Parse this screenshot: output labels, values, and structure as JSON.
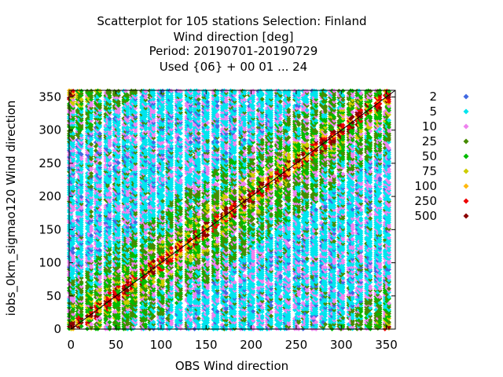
{
  "chart_data": {
    "type": "scatter",
    "title": [
      "Scatterplot for  105 stations Selection: Finland",
      "Wind direction [deg]",
      "Period: 20190701-20190729",
      "Used {06} + 00 01 ... 24"
    ],
    "xlabel": "OBS Wind direction",
    "ylabel": "iobs_0km_sigmao120 Wind direction",
    "xlim": [
      -2,
      360
    ],
    "ylim": [
      0,
      360
    ],
    "xticks": [
      0,
      50,
      100,
      150,
      200,
      250,
      300,
      350
    ],
    "yticks": [
      0,
      50,
      100,
      150,
      200,
      250,
      300,
      350
    ],
    "grid": false,
    "legend_position": "right",
    "diagonal_line": true,
    "series": [
      {
        "name": "2",
        "color": "#4169e1"
      },
      {
        "name": "5",
        "color": "#00e5ee"
      },
      {
        "name": "10",
        "color": "#ee82ee"
      },
      {
        "name": "25",
        "color": "#458b00"
      },
      {
        "name": "50",
        "color": "#00bb00"
      },
      {
        "name": "75",
        "color": "#cdcd00"
      },
      {
        "name": "100",
        "color": "#ffb90f"
      },
      {
        "name": "250",
        "color": "#ee0000"
      },
      {
        "name": "500",
        "color": "#8b0000"
      }
    ]
  }
}
